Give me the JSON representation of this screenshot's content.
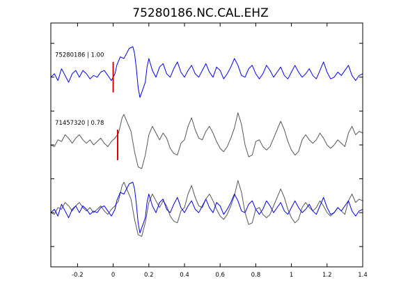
{
  "chart_data": {
    "type": "line",
    "title": "75280186.NC.CAL.EHZ",
    "xlabel": "",
    "ylabel": "",
    "xlim": [
      -0.35,
      1.4
    ],
    "x_ticks": [
      -0.2,
      0,
      0.2,
      0.4,
      0.6,
      0.8,
      1,
      1.2,
      1.4
    ],
    "x_tick_labels": [
      "-0.2",
      "0",
      "0.2",
      "0.4",
      "0.6",
      "0.8",
      "1",
      "1.2",
      "1.4"
    ],
    "ylim": [
      -3.6,
      3.6
    ],
    "y_ticks": [
      -3,
      -2,
      -1,
      0,
      1,
      2,
      3
    ],
    "grid": false,
    "colors": {
      "reference": "#0000ee",
      "match": "#555555",
      "pick": "#dd0000"
    },
    "traces": [
      {
        "label": "75280186 | 1.00",
        "baseline": 2.0,
        "color": "#0000ee",
        "pick_x": 0.0,
        "samples": [
          [
            -0.35,
            0.0
          ],
          [
            -0.33,
            0.1
          ],
          [
            -0.31,
            -0.1
          ],
          [
            -0.29,
            0.25
          ],
          [
            -0.27,
            0.05
          ],
          [
            -0.25,
            -0.15
          ],
          [
            -0.23,
            0.1
          ],
          [
            -0.21,
            0.2
          ],
          [
            -0.19,
            0.0
          ],
          [
            -0.17,
            0.2
          ],
          [
            -0.15,
            0.1
          ],
          [
            -0.13,
            -0.05
          ],
          [
            -0.11,
            0.05
          ],
          [
            -0.09,
            0.0
          ],
          [
            -0.07,
            0.15
          ],
          [
            -0.05,
            0.2
          ],
          [
            -0.03,
            0.05
          ],
          [
            -0.01,
            -0.1
          ],
          [
            0.01,
            0.1
          ],
          [
            0.02,
            0.35
          ],
          [
            0.04,
            0.6
          ],
          [
            0.06,
            0.55
          ],
          [
            0.07,
            0.65
          ],
          [
            0.09,
            0.85
          ],
          [
            0.11,
            0.9
          ],
          [
            0.12,
            0.7
          ],
          [
            0.13,
            0.25
          ],
          [
            0.14,
            -0.3
          ],
          [
            0.15,
            -0.6
          ],
          [
            0.16,
            -0.45
          ],
          [
            0.18,
            -0.15
          ],
          [
            0.19,
            0.3
          ],
          [
            0.2,
            0.55
          ],
          [
            0.22,
            0.2
          ],
          [
            0.24,
            0.0
          ],
          [
            0.26,
            0.3
          ],
          [
            0.28,
            0.4
          ],
          [
            0.3,
            0.1
          ],
          [
            0.32,
            0.0
          ],
          [
            0.34,
            0.25
          ],
          [
            0.36,
            0.45
          ],
          [
            0.38,
            0.15
          ],
          [
            0.4,
            0.0
          ],
          [
            0.42,
            0.2
          ],
          [
            0.44,
            0.35
          ],
          [
            0.46,
            0.1
          ],
          [
            0.48,
            0.0
          ],
          [
            0.5,
            0.2
          ],
          [
            0.52,
            0.4
          ],
          [
            0.54,
            0.15
          ],
          [
            0.56,
            0.0
          ],
          [
            0.58,
            0.3
          ],
          [
            0.6,
            0.2
          ],
          [
            0.62,
            -0.05
          ],
          [
            0.64,
            0.1
          ],
          [
            0.66,
            0.3
          ],
          [
            0.68,
            0.55
          ],
          [
            0.7,
            0.35
          ],
          [
            0.72,
            0.05
          ],
          [
            0.74,
            0.0
          ],
          [
            0.76,
            0.25
          ],
          [
            0.78,
            0.35
          ],
          [
            0.8,
            0.1
          ],
          [
            0.82,
            -0.05
          ],
          [
            0.84,
            0.1
          ],
          [
            0.86,
            0.35
          ],
          [
            0.88,
            0.2
          ],
          [
            0.9,
            0.0
          ],
          [
            0.92,
            0.15
          ],
          [
            0.94,
            0.3
          ],
          [
            0.96,
            0.05
          ],
          [
            0.98,
            -0.05
          ],
          [
            1.0,
            0.15
          ],
          [
            1.02,
            0.35
          ],
          [
            1.04,
            0.15
          ],
          [
            1.06,
            0.0
          ],
          [
            1.08,
            0.1
          ],
          [
            1.1,
            0.25
          ],
          [
            1.12,
            0.05
          ],
          [
            1.14,
            -0.05
          ],
          [
            1.16,
            0.2
          ],
          [
            1.18,
            0.45
          ],
          [
            1.2,
            0.15
          ],
          [
            1.22,
            -0.05
          ],
          [
            1.24,
            0.0
          ],
          [
            1.26,
            0.15
          ],
          [
            1.28,
            0.05
          ],
          [
            1.3,
            0.2
          ],
          [
            1.32,
            0.35
          ],
          [
            1.34,
            0.05
          ],
          [
            1.36,
            -0.1
          ],
          [
            1.38,
            0.05
          ],
          [
            1.4,
            0.1
          ]
        ]
      },
      {
        "label": "71457320 | 0.78",
        "baseline": 0.0,
        "color": "#555555",
        "pick_x": 0.025,
        "samples": [
          [
            -0.35,
            0.0
          ],
          [
            -0.33,
            -0.05
          ],
          [
            -0.31,
            0.15
          ],
          [
            -0.29,
            0.1
          ],
          [
            -0.27,
            0.3
          ],
          [
            -0.25,
            0.2
          ],
          [
            -0.23,
            0.05
          ],
          [
            -0.21,
            0.2
          ],
          [
            -0.19,
            0.3
          ],
          [
            -0.17,
            0.15
          ],
          [
            -0.15,
            0.05
          ],
          [
            -0.13,
            0.15
          ],
          [
            -0.11,
            0.0
          ],
          [
            -0.09,
            0.1
          ],
          [
            -0.07,
            0.2
          ],
          [
            -0.05,
            0.05
          ],
          [
            -0.03,
            -0.05
          ],
          [
            -0.01,
            0.1
          ],
          [
            0.01,
            0.2
          ],
          [
            0.03,
            0.35
          ],
          [
            0.05,
            0.8
          ],
          [
            0.06,
            0.9
          ],
          [
            0.08,
            0.65
          ],
          [
            0.1,
            0.4
          ],
          [
            0.12,
            -0.2
          ],
          [
            0.14,
            -0.65
          ],
          [
            0.16,
            -0.7
          ],
          [
            0.18,
            -0.3
          ],
          [
            0.2,
            0.3
          ],
          [
            0.22,
            0.55
          ],
          [
            0.24,
            0.35
          ],
          [
            0.26,
            0.15
          ],
          [
            0.28,
            0.35
          ],
          [
            0.3,
            0.2
          ],
          [
            0.32,
            -0.1
          ],
          [
            0.34,
            -0.25
          ],
          [
            0.36,
            -0.3
          ],
          [
            0.38,
            0.05
          ],
          [
            0.4,
            0.15
          ],
          [
            0.42,
            0.55
          ],
          [
            0.44,
            0.8
          ],
          [
            0.46,
            0.45
          ],
          [
            0.48,
            0.2
          ],
          [
            0.5,
            0.15
          ],
          [
            0.52,
            0.4
          ],
          [
            0.54,
            0.55
          ],
          [
            0.56,
            0.35
          ],
          [
            0.58,
            0.1
          ],
          [
            0.6,
            -0.1
          ],
          [
            0.62,
            -0.2
          ],
          [
            0.64,
            -0.05
          ],
          [
            0.66,
            0.2
          ],
          [
            0.68,
            0.5
          ],
          [
            0.7,
            0.95
          ],
          [
            0.72,
            0.6
          ],
          [
            0.74,
            0.0
          ],
          [
            0.76,
            -0.35
          ],
          [
            0.78,
            -0.3
          ],
          [
            0.8,
            0.1
          ],
          [
            0.82,
            0.15
          ],
          [
            0.84,
            -0.05
          ],
          [
            0.86,
            -0.15
          ],
          [
            0.88,
            -0.05
          ],
          [
            0.9,
            0.2
          ],
          [
            0.92,
            0.45
          ],
          [
            0.94,
            0.7
          ],
          [
            0.96,
            0.45
          ],
          [
            0.98,
            0.1
          ],
          [
            1.0,
            -0.15
          ],
          [
            1.02,
            -0.3
          ],
          [
            1.04,
            -0.2
          ],
          [
            1.06,
            0.15
          ],
          [
            1.08,
            0.3
          ],
          [
            1.1,
            0.15
          ],
          [
            1.12,
            0.05
          ],
          [
            1.14,
            0.15
          ],
          [
            1.16,
            0.35
          ],
          [
            1.18,
            0.2
          ],
          [
            1.2,
            0.0
          ],
          [
            1.22,
            -0.1
          ],
          [
            1.24,
            0.0
          ],
          [
            1.26,
            0.15
          ],
          [
            1.28,
            0.05
          ],
          [
            1.3,
            -0.05
          ],
          [
            1.32,
            0.35
          ],
          [
            1.34,
            0.55
          ],
          [
            1.36,
            0.3
          ],
          [
            1.38,
            0.4
          ],
          [
            1.4,
            0.35
          ]
        ]
      }
    ],
    "overlay": {
      "baseline": -2.0
    }
  }
}
